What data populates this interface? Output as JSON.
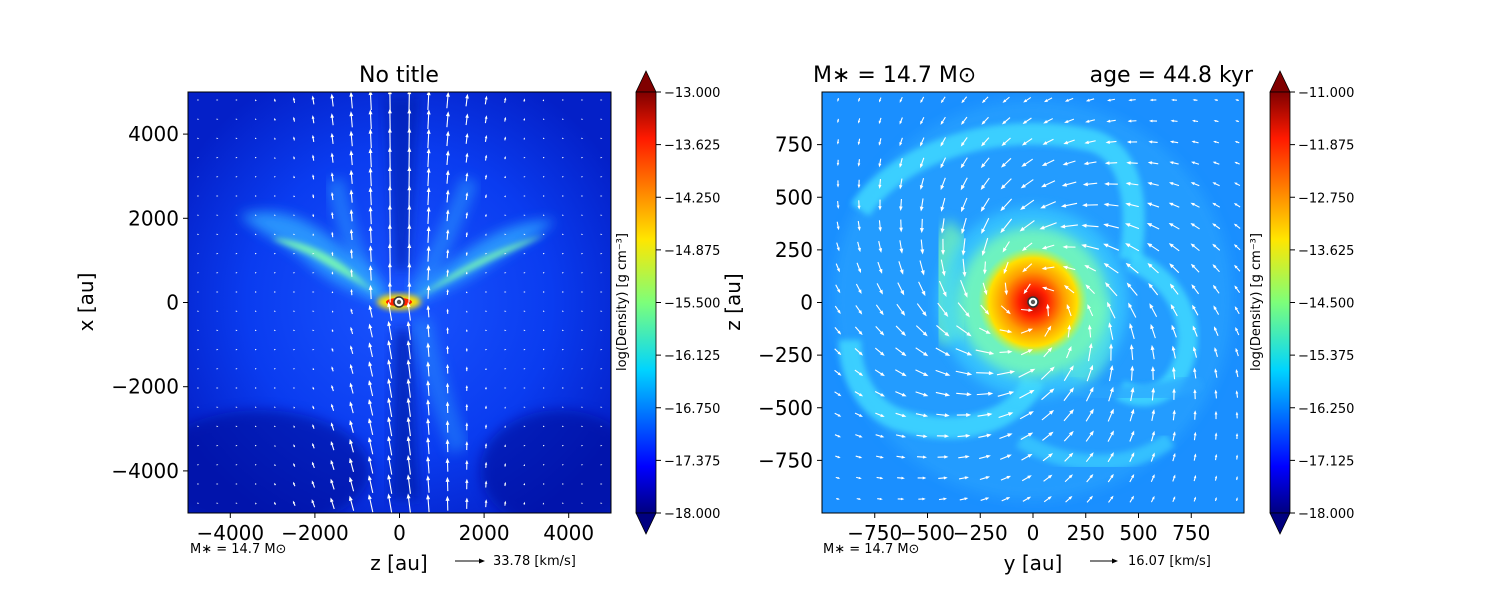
{
  "chart_data": [
    {
      "type": "heatmap",
      "title": "No title",
      "xlabel": "z [au]",
      "ylabel": "x [au]",
      "xlim": [
        -5000,
        5000
      ],
      "ylim": [
        -5000,
        5000
      ],
      "xticks": [
        -4000,
        -2000,
        0,
        2000,
        4000
      ],
      "xtick_labels": [
        "−4000",
        "−2000",
        "0",
        "2000",
        "4000"
      ],
      "yticks": [
        4000,
        2000,
        0,
        -2000,
        -4000
      ],
      "ytick_labels": [
        "4000",
        "2000",
        "0",
        "−2000",
        "−4000"
      ],
      "colorbar": {
        "label": "log(Density) [g cm⁻³]",
        "range": [
          -18.0,
          -13.0
        ],
        "ticks": [
          -13.0,
          -13.625,
          -14.25,
          -14.875,
          -15.5,
          -16.125,
          -16.75,
          -17.375,
          -18.0
        ],
        "tick_labels": [
          "−13.000",
          "−13.625",
          "−14.250",
          "−14.875",
          "−15.500",
          "−16.125",
          "−16.750",
          "−17.375",
          "−18.000"
        ]
      },
      "mass_note": "M∗ = 14.7 M⊙",
      "velocity_key": "33.78 [km/s]"
    },
    {
      "type": "heatmap",
      "title_left": "M∗ = 14.7 M⊙",
      "title_right": "age = 44.8 kyr",
      "xlabel": "y [au]",
      "ylabel": "z [au]",
      "xlim": [
        -1000,
        1000
      ],
      "ylim": [
        -1000,
        1000
      ],
      "xticks": [
        -750,
        -500,
        -250,
        0,
        250,
        500,
        750
      ],
      "xtick_labels": [
        "−750",
        "−500",
        "−250",
        "0",
        "250",
        "500",
        "750"
      ],
      "yticks": [
        750,
        500,
        250,
        0,
        -250,
        -500,
        -750
      ],
      "ytick_labels": [
        "750",
        "500",
        "250",
        "0",
        "−250",
        "−500",
        "−750"
      ],
      "colorbar": {
        "label": "log(Density) [g cm⁻³]",
        "range": [
          -18.0,
          -11.0
        ],
        "ticks": [
          -11.0,
          -11.875,
          -12.75,
          -13.625,
          -14.5,
          -15.375,
          -16.25,
          -17.125,
          -18.0
        ],
        "tick_labels": [
          "−11.000",
          "−11.875",
          "−12.750",
          "−13.625",
          "−14.500",
          "−15.375",
          "−16.250",
          "−17.125",
          "−18.000"
        ]
      },
      "mass_note": "M∗ = 14.7 M⊙",
      "velocity_key": "16.07 [km/s]"
    }
  ]
}
